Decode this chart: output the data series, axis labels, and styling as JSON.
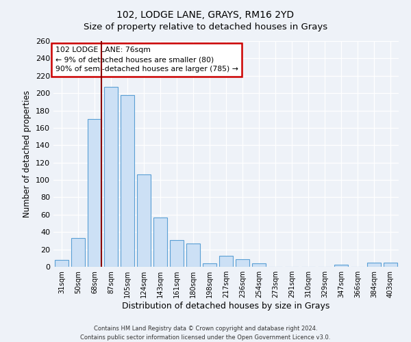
{
  "title": "102, LODGE LANE, GRAYS, RM16 2YD",
  "subtitle": "Size of property relative to detached houses in Grays",
  "xlabel": "Distribution of detached houses by size in Grays",
  "ylabel": "Number of detached properties",
  "categories": [
    "31sqm",
    "50sqm",
    "68sqm",
    "87sqm",
    "105sqm",
    "124sqm",
    "143sqm",
    "161sqm",
    "180sqm",
    "198sqm",
    "217sqm",
    "236sqm",
    "254sqm",
    "273sqm",
    "291sqm",
    "310sqm",
    "329sqm",
    "347sqm",
    "366sqm",
    "384sqm",
    "403sqm"
  ],
  "values": [
    8,
    33,
    170,
    207,
    198,
    106,
    57,
    31,
    27,
    4,
    13,
    9,
    4,
    0,
    0,
    0,
    0,
    2,
    0,
    5,
    5
  ],
  "bar_color": "#cce0f5",
  "bar_edge_color": "#5a9fd4",
  "vline_x_index": 2.42,
  "vline_color": "#8b0000",
  "annotation_title": "102 LODGE LANE: 76sqm",
  "annotation_line1": "← 9% of detached houses are smaller (80)",
  "annotation_line2": "90% of semi-detached houses are larger (785) →",
  "annotation_box_color": "#ffffff",
  "annotation_box_edge": "#cc0000",
  "ylim": [
    0,
    260
  ],
  "yticks": [
    0,
    20,
    40,
    60,
    80,
    100,
    120,
    140,
    160,
    180,
    200,
    220,
    240,
    260
  ],
  "footer1": "Contains HM Land Registry data © Crown copyright and database right 2024.",
  "footer2": "Contains public sector information licensed under the Open Government Licence v3.0.",
  "bg_color": "#eef2f8",
  "plot_bg_color": "#eef2f8",
  "grid_color": "#ffffff",
  "title_fontsize": 10,
  "subtitle_fontsize": 9.5
}
